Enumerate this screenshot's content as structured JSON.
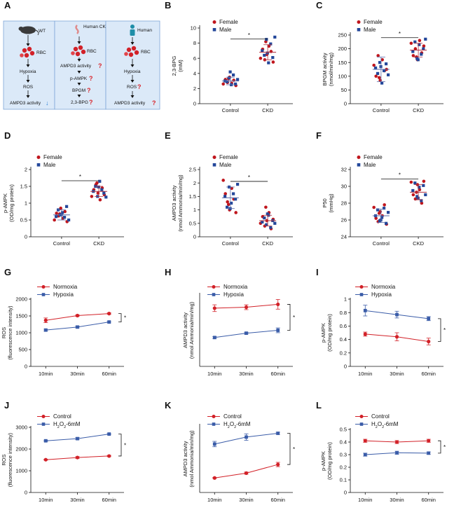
{
  "colors": {
    "female": "#c0161d",
    "male": "#23479a",
    "red_series": "#d22128",
    "blue_series": "#3a5ca8",
    "panel_a_bg": "#dbe9f8",
    "panel_a_border": "#7ea6d8",
    "question": "#d9252b",
    "down_arrow": "#2a7fd6"
  },
  "panel_a": {
    "letter": "A",
    "columns": [
      {
        "header": "WT",
        "icon": "mouse-icon",
        "steps": [
          "RBC",
          "Hypoxia",
          "ROS",
          "AMPD3 activity"
        ],
        "down_marker": "↓",
        "questions": []
      },
      {
        "header": "Human CKD",
        "icon": "kidney-icon",
        "steps": [
          "RBC",
          "AMPD3 activity",
          "p-AMPK",
          "BPGM",
          "2,3-BPG"
        ],
        "question": "?"
      },
      {
        "header": "Human",
        "icon": "person-icon",
        "steps": [
          "RBC",
          "Hypoxia",
          "ROS",
          "AMPD3 activity"
        ],
        "question": "?"
      }
    ]
  },
  "chart_data": [
    {
      "panel": "B",
      "type": "scatter",
      "title": "",
      "xlabel": "",
      "ylabel": "2,3-BPG (mM)",
      "ylim": [
        0,
        10
      ],
      "yticks": [
        0,
        2,
        4,
        6,
        8,
        10
      ],
      "categories": [
        "Control",
        "CKD"
      ],
      "legend": [
        "Female",
        "Male"
      ],
      "significance": "*",
      "summary": [
        {
          "mean": 3.0,
          "sd": 0.5
        },
        {
          "mean": 6.8,
          "sd": 1.0
        }
      ],
      "series": [
        {
          "name": "Female",
          "groups": [
            [
              2.6,
              3.2,
              2.8,
              3.5,
              2.7,
              3.1,
              2.4,
              3.3
            ],
            [
              6.0,
              7.2,
              5.8,
              6.5,
              7.6,
              6.9,
              5.5,
              8.2
            ]
          ]
        },
        {
          "name": "Male",
          "groups": [
            [
              3.0,
              2.9,
              3.4,
              2.5,
              3.8,
              2.6,
              3.2,
              4.2
            ],
            [
              7.0,
              6.4,
              8.5,
              5.4,
              7.9,
              6.1,
              8.8,
              6.7
            ]
          ]
        }
      ]
    },
    {
      "panel": "C",
      "type": "scatter",
      "title": "",
      "xlabel": "",
      "ylabel": "BPGM activity (nmol/min/mg)",
      "ylim": [
        0,
        250
      ],
      "yticks": [
        0,
        50,
        100,
        150,
        200,
        250
      ],
      "categories": [
        "Control",
        "CKD"
      ],
      "legend": [
        "Female",
        "Male"
      ],
      "significance": "*",
      "summary": [
        {
          "mean": 125,
          "sd": 45
        },
        {
          "mean": 195,
          "sd": 25
        }
      ],
      "series": [
        {
          "name": "Female",
          "groups": [
            [
              140,
              100,
              175,
              85,
              160,
              120,
              125,
              95
            ],
            [
              220,
              175,
              200,
              160,
              230,
              185,
              210,
              170
            ]
          ]
        },
        {
          "name": "Male",
          "groups": [
            [
              130,
              110,
              150,
              75,
              120,
              145,
              105,
              135
            ],
            [
              190,
              225,
              165,
              215,
              180,
              200,
              235,
              160
            ]
          ]
        }
      ]
    },
    {
      "panel": "D",
      "type": "scatter",
      "title": "",
      "xlabel": "",
      "ylabel": "p-AMPK (OD/mg protein)",
      "ylim": [
        0,
        2.0
      ],
      "yticks": [
        0,
        0.5,
        1.0,
        1.5,
        2.0
      ],
      "categories": [
        "Control",
        "CKD"
      ],
      "legend": [
        "Female",
        "Male"
      ],
      "significance": "*",
      "summary": [
        {
          "mean": 0.65,
          "sd": 0.15
        },
        {
          "mean": 1.35,
          "sd": 0.15
        }
      ],
      "series": [
        {
          "name": "Female",
          "groups": [
            [
              0.5,
              0.7,
              0.62,
              0.85,
              0.55,
              0.75,
              0.45,
              0.68
            ],
            [
              1.2,
              1.4,
              1.55,
              1.3,
              1.1,
              1.45,
              1.25,
              1.6
            ]
          ]
        },
        {
          "name": "Male",
          "groups": [
            [
              0.6,
              0.8,
              0.65,
              0.72,
              0.58,
              0.9,
              0.5,
              0.66
            ],
            [
              1.35,
              1.5,
              1.2,
              1.65,
              1.4,
              1.3,
              1.18,
              1.48
            ]
          ]
        }
      ]
    },
    {
      "panel": "E",
      "type": "scatter",
      "title": "",
      "xlabel": "",
      "ylabel": "AMPD3 activity (nmol Ammonia/min/mg)",
      "ylim": [
        0,
        2.5
      ],
      "yticks": [
        0,
        0.5,
        1.0,
        1.5,
        2.0,
        2.5
      ],
      "categories": [
        "Control",
        "CKD"
      ],
      "legend": [
        "Female",
        "Male"
      ],
      "significance": "*",
      "summary": [
        {
          "mean": 1.45,
          "sd": 0.4
        },
        {
          "mean": 0.6,
          "sd": 0.2
        }
      ],
      "series": [
        {
          "name": "Female",
          "groups": [
            [
              2.1,
              1.6,
              1.3,
              1.0,
              1.8,
              1.4,
              0.9,
              1.2
            ],
            [
              0.5,
              0.75,
              0.4,
              0.6,
              0.9,
              0.3,
              0.65,
              1.1
            ]
          ]
        },
        {
          "name": "Male",
          "groups": [
            [
              1.5,
              1.1,
              1.85,
              1.25,
              1.6,
              1.4,
              1.95,
              1.05
            ],
            [
              0.55,
              0.7,
              0.45,
              0.8,
              0.35,
              0.6,
              0.5,
              0.85
            ]
          ]
        }
      ]
    },
    {
      "panel": "F",
      "type": "scatter",
      "title": "",
      "xlabel": "",
      "ylabel": "P50 (mmHg)",
      "ylim": [
        24,
        32
      ],
      "yticks": [
        24,
        26,
        28,
        30,
        32
      ],
      "categories": [
        "Control",
        "CKD"
      ],
      "legend": [
        "Female",
        "Male"
      ],
      "significance": "*",
      "summary": [
        {
          "mean": 26.5,
          "sd": 0.8
        },
        {
          "mean": 29.3,
          "sd": 0.9
        }
      ],
      "series": [
        {
          "name": "Female",
          "groups": [
            [
              27.5,
              26.2,
              25.8,
              27.0,
              26.5,
              27.8,
              25.5,
              26.8
            ],
            [
              30.5,
              29.0,
              28.5,
              30.2,
              29.6,
              28.0,
              30.6,
              29.3
            ]
          ]
        },
        {
          "name": "Male",
          "groups": [
            [
              26.5,
              27.2,
              25.9,
              26.3,
              27.4,
              25.6,
              26.9,
              26.0
            ],
            [
              29.5,
              30.4,
              28.8,
              29.9,
              28.3,
              30.1,
              29.0,
              28.6
            ]
          ]
        }
      ]
    },
    {
      "panel": "G",
      "type": "line",
      "xlabel": "",
      "ylabel": "ROS (fluorescence intensity)",
      "ylim": [
        0,
        2000
      ],
      "yticks": [
        0,
        500,
        1000,
        1500,
        2000
      ],
      "categories": [
        "10min",
        "30min",
        "60min"
      ],
      "significance": "*",
      "series": [
        {
          "name": "Normoxia",
          "values": [
            1370,
            1510,
            1570
          ],
          "err": [
            70,
            25,
            20
          ]
        },
        {
          "name": "Hypoxia",
          "values": [
            1080,
            1170,
            1320
          ],
          "err": [
            25,
            25,
            25
          ]
        }
      ]
    },
    {
      "panel": "H",
      "type": "line",
      "xlabel": "",
      "ylabel": "AMPD3 activity (nmol Ammonia/min/mg)",
      "ylim": [
        0,
        1.5
      ],
      "yticks": [],
      "categories": [
        "10min",
        "30min",
        "60min"
      ],
      "significance": "*",
      "series": [
        {
          "name": "Normoxia",
          "values": [
            1.21,
            1.23,
            1.29
          ],
          "err": [
            0.07,
            0.05,
            0.1
          ]
        },
        {
          "name": "Hypoxia",
          "values": [
            0.6,
            0.69,
            0.75
          ],
          "err": [
            0.02,
            0.02,
            0.05
          ]
        }
      ]
    },
    {
      "panel": "I",
      "type": "line",
      "xlabel": "",
      "ylabel": "p-AMPK (OD/mg protein)",
      "ylim": [
        0,
        1.0
      ],
      "yticks": [
        0,
        0.2,
        0.4,
        0.6,
        0.8,
        1.0
      ],
      "categories": [
        "10min",
        "30min",
        "60min"
      ],
      "significance": "*",
      "series": [
        {
          "name": "Normoxia",
          "values": [
            0.48,
            0.44,
            0.37
          ],
          "err": [
            0.03,
            0.06,
            0.05
          ]
        },
        {
          "name": "Hypoxia",
          "values": [
            0.83,
            0.77,
            0.71
          ],
          "err": [
            0.08,
            0.05,
            0.03
          ]
        }
      ]
    },
    {
      "panel": "J",
      "type": "line",
      "xlabel": "",
      "ylabel": "ROS (fluorescence intensity)",
      "ylim": [
        0,
        3000
      ],
      "yticks": [
        0,
        1000,
        2000,
        3000
      ],
      "categories": [
        "10min",
        "30min",
        "60min"
      ],
      "significance": "*",
      "series": [
        {
          "name": "Control",
          "values": [
            1510,
            1610,
            1680
          ],
          "err": [
            20,
            40,
            30
          ]
        },
        {
          "name": "H2O2-6mM",
          "values": [
            2380,
            2480,
            2690
          ],
          "err": [
            30,
            50,
            30
          ]
        }
      ]
    },
    {
      "panel": "K",
      "type": "line",
      "xlabel": "",
      "ylabel": "AMPD3 activity (nmol Ammonia/min/mg)",
      "ylim": [
        1.0,
        2.25
      ],
      "yticks": [],
      "categories": [
        "10min",
        "30min",
        "60min"
      ],
      "significance": "*",
      "series": [
        {
          "name": "Control",
          "values": [
            1.27,
            1.36,
            1.52
          ],
          "err": [
            0.01,
            0.02,
            0.04
          ]
        },
        {
          "name": "H2O2-6mM",
          "values": [
            1.9,
            2.03,
            2.1
          ],
          "err": [
            0.05,
            0.06,
            0.02
          ]
        }
      ]
    },
    {
      "panel": "L",
      "type": "line",
      "xlabel": "",
      "ylabel": "p-AMPK (OD/mg protein)",
      "ylim": [
        0,
        0.5
      ],
      "yticks": [
        0,
        0.1,
        0.2,
        0.3,
        0.4,
        0.5
      ],
      "categories": [
        "10min",
        "30min",
        "60min"
      ],
      "significance": "*",
      "series": [
        {
          "name": "Control",
          "values": [
            0.41,
            0.4,
            0.41
          ],
          "err": [
            0.012,
            0.012,
            0.012
          ]
        },
        {
          "name": "H2O2-6mM",
          "values": [
            0.3,
            0.315,
            0.312
          ],
          "err": [
            0.012,
            0.012,
            0.01
          ]
        }
      ]
    }
  ]
}
